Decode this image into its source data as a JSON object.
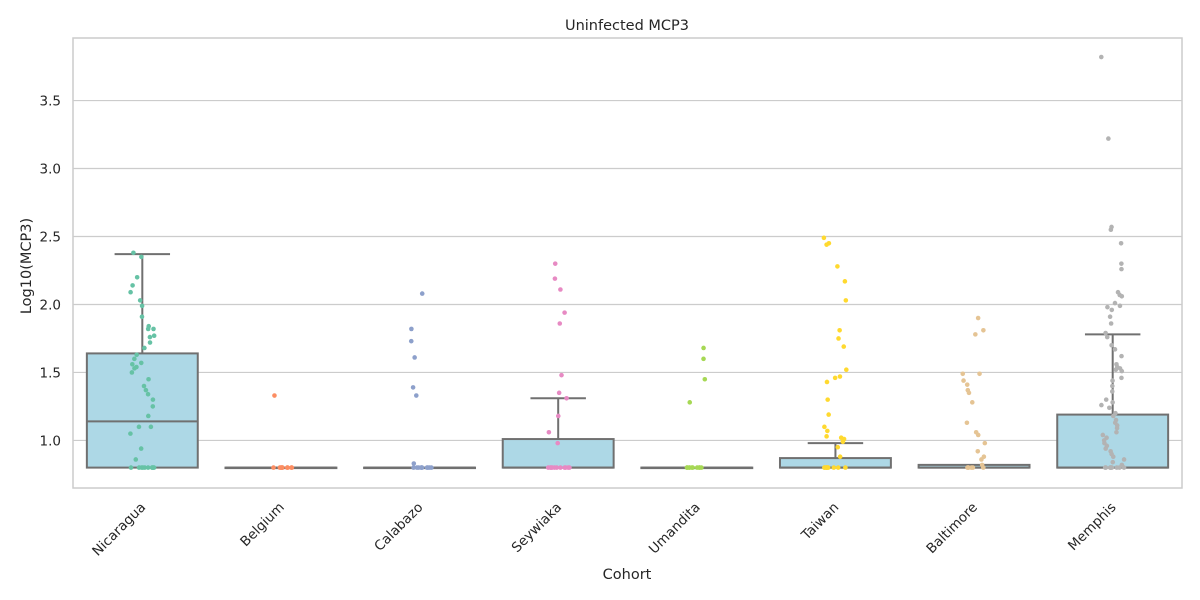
{
  "chart_data": {
    "type": "box",
    "title": "Uninfected MCP3",
    "xlabel": "Cohort",
    "ylabel": "Log10(MCP3)",
    "ylim": [
      0.65,
      3.96
    ],
    "yticks": [
      1.0,
      1.5,
      2.0,
      2.5,
      3.0,
      3.5
    ],
    "ytick_labels": [
      "1.0",
      "1.5",
      "2.0",
      "2.5",
      "3.0",
      "3.5"
    ],
    "grid": true,
    "box_color": "#add8e6",
    "box_edge_color": "#707070",
    "categories": [
      "Nicaragua",
      "Belgium",
      "Calabazo",
      "Seywiaka",
      "Umandita",
      "Taiwan",
      "Baltimore",
      "Memphis"
    ],
    "point_colors": [
      "#66c2a5",
      "#fc8d62",
      "#8da0cb",
      "#e78ac3",
      "#a6d854",
      "#ffd92f",
      "#e5c494",
      "#b3b3b3"
    ],
    "boxes": [
      {
        "min": 0.8,
        "q1": 0.8,
        "median": 1.14,
        "q3": 1.64,
        "max": 2.37
      },
      {
        "min": 0.8,
        "q1": 0.8,
        "median": 0.8,
        "q3": 0.8,
        "max": 0.8
      },
      {
        "min": 0.8,
        "q1": 0.8,
        "median": 0.8,
        "q3": 0.8,
        "max": 0.8
      },
      {
        "min": 0.8,
        "q1": 0.8,
        "median": 0.8,
        "q3": 1.01,
        "max": 1.31
      },
      {
        "min": 0.8,
        "q1": 0.8,
        "median": 0.8,
        "q3": 0.8,
        "max": 0.8
      },
      {
        "min": 0.8,
        "q1": 0.8,
        "median": 0.8,
        "q3": 0.87,
        "max": 0.98
      },
      {
        "min": 0.8,
        "q1": 0.8,
        "median": 0.8,
        "q3": 0.82,
        "max": 0.82
      },
      {
        "min": 0.8,
        "q1": 0.8,
        "median": 0.8,
        "q3": 1.19,
        "max": 1.78
      }
    ],
    "points": [
      [
        2.38,
        2.35,
        2.2,
        2.14,
        2.09,
        2.03,
        1.99,
        1.91,
        1.84,
        1.82,
        1.82,
        1.77,
        1.76,
        1.72,
        1.68,
        1.63,
        1.6,
        1.57,
        1.56,
        1.54,
        1.53,
        1.5,
        1.45,
        1.4,
        1.37,
        1.34,
        1.3,
        1.25,
        1.18,
        1.1,
        1.1,
        1.05,
        0.94,
        0.86,
        0.8,
        0.8,
        0.8,
        0.8,
        0.8,
        0.8,
        0.8,
        0.8,
        0.8,
        0.8
      ],
      [
        1.33,
        0.8,
        0.8,
        0.8,
        0.8,
        0.8,
        0.8,
        0.8,
        0.8,
        0.8,
        0.8
      ],
      [
        2.08,
        1.82,
        1.73,
        1.61,
        1.39,
        1.33,
        0.83,
        0.8,
        0.8,
        0.8,
        0.8,
        0.8,
        0.8,
        0.8,
        0.8,
        0.8,
        0.8
      ],
      [
        2.3,
        2.19,
        2.11,
        1.94,
        1.86,
        1.48,
        1.35,
        1.31,
        1.18,
        1.06,
        0.98,
        0.8,
        0.8,
        0.8,
        0.8,
        0.8,
        0.8,
        0.8,
        0.8,
        0.8,
        0.8,
        0.8
      ],
      [
        1.68,
        1.6,
        1.45,
        1.28,
        0.8,
        0.8,
        0.8,
        0.8,
        0.8,
        0.8,
        0.8,
        0.8,
        0.8,
        0.8
      ],
      [
        2.49,
        2.45,
        2.44,
        2.28,
        2.17,
        2.03,
        1.81,
        1.75,
        1.69,
        1.52,
        1.47,
        1.46,
        1.43,
        1.3,
        1.19,
        1.1,
        1.07,
        1.03,
        1.02,
        1.01,
        0.99,
        0.95,
        0.88,
        0.8,
        0.8,
        0.8,
        0.8,
        0.8,
        0.8,
        0.8,
        0.8,
        0.8,
        0.8
      ],
      [
        1.9,
        1.81,
        1.78,
        1.49,
        1.49,
        1.44,
        1.41,
        1.37,
        1.35,
        1.28,
        1.13,
        1.06,
        1.04,
        0.98,
        0.92,
        0.88,
        0.86,
        0.82,
        0.8,
        0.8,
        0.8,
        0.8,
        0.8,
        0.8
      ],
      [
        3.82,
        3.22,
        2.57,
        2.55,
        2.45,
        2.3,
        2.26,
        2.09,
        2.07,
        2.06,
        2.01,
        1.99,
        1.98,
        1.96,
        1.91,
        1.86,
        1.79,
        1.76,
        1.7,
        1.67,
        1.62,
        1.56,
        1.54,
        1.53,
        1.52,
        1.51,
        1.46,
        1.44,
        1.4,
        1.36,
        1.3,
        1.28,
        1.26,
        1.24,
        1.2,
        1.18,
        1.15,
        1.13,
        1.11,
        1.09,
        1.06,
        1.04,
        1.02,
        1.0,
        0.98,
        0.96,
        0.94,
        0.92,
        0.9,
        0.88,
        0.86,
        0.84,
        0.82,
        0.8,
        0.8,
        0.8,
        0.8,
        0.8,
        0.8,
        0.8,
        0.8,
        0.8
      ]
    ]
  }
}
